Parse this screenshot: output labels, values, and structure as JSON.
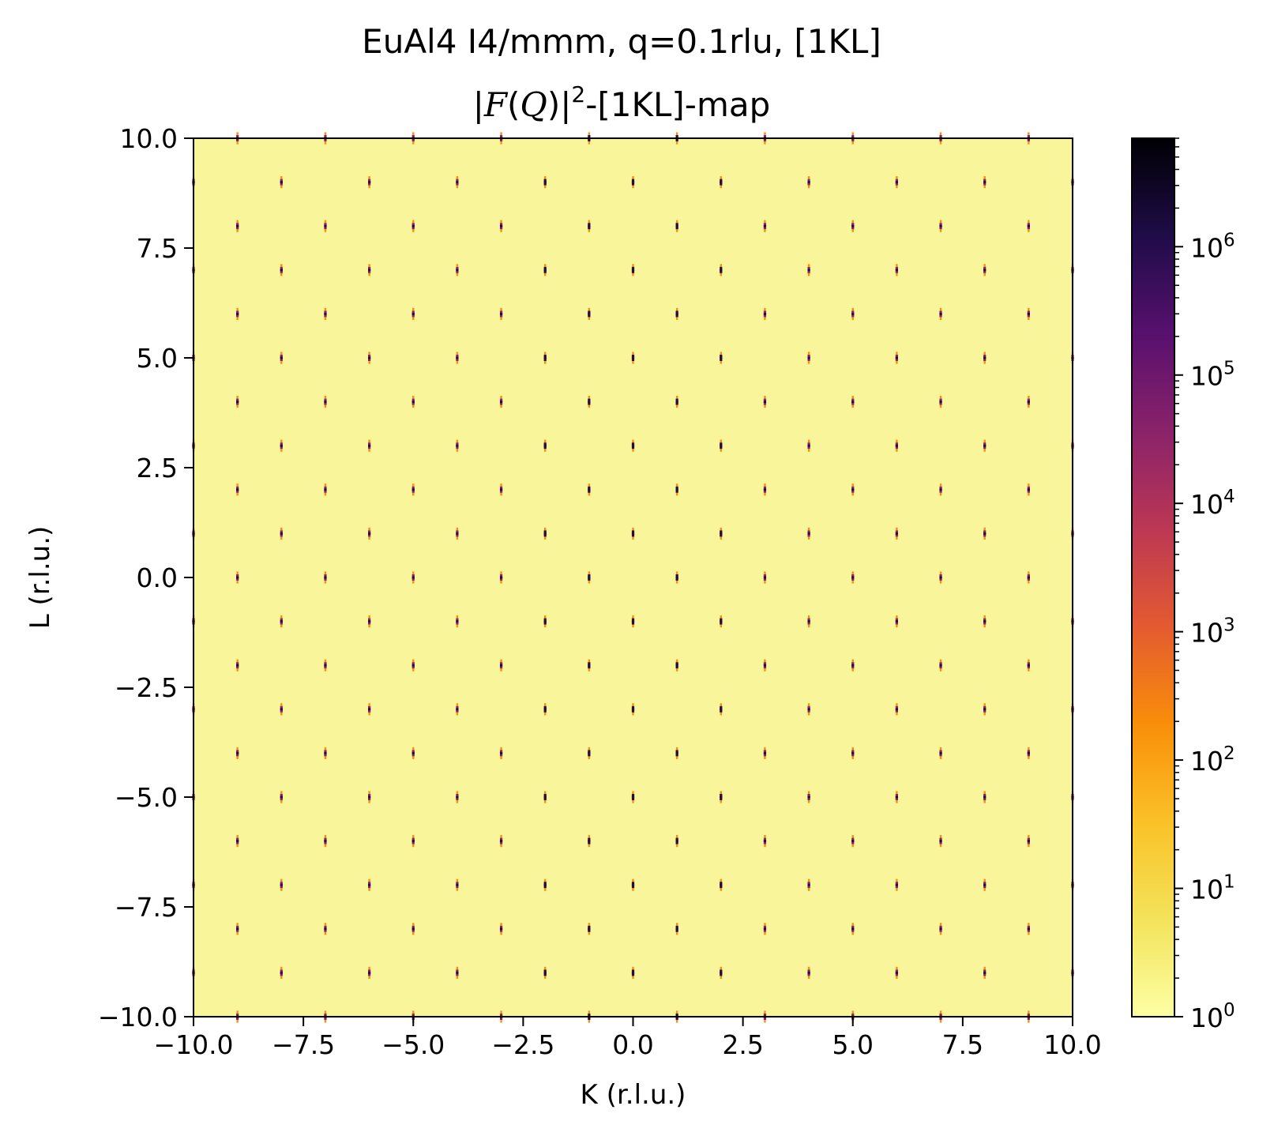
{
  "chart_data": {
    "type": "heatmap",
    "title": "EuAl4 I4/mmm, q=0.1rlu, [1KL]",
    "subtitle": {
      "pre": "|",
      "func": "F",
      "open": "(",
      "arg": "Q",
      "close": ")",
      "post": "|",
      "power": "2",
      "suffix": "-[1KL]-map"
    },
    "xlabel": "K (r.l.u.)",
    "ylabel": "L (r.l.u.)",
    "xlim": [
      -10,
      10
    ],
    "ylim": [
      -10,
      10
    ],
    "xticks": [
      -10,
      -7.5,
      -5,
      -2.5,
      0,
      2.5,
      5,
      7.5,
      10
    ],
    "xtick_labels": [
      "−10.0",
      "−7.5",
      "−5.0",
      "−2.5",
      "0.0",
      "2.5",
      "5.0",
      "7.5",
      "10.0"
    ],
    "yticks": [
      -10,
      -7.5,
      -5,
      -2.5,
      0,
      2.5,
      5,
      7.5,
      10
    ],
    "ytick_labels": [
      "−10.0",
      "−7.5",
      "−5.0",
      "−2.5",
      "0.0",
      "2.5",
      "5.0",
      "7.5",
      "10.0"
    ],
    "grid": false,
    "colormap": "inferno_r",
    "background_color": "#f8f59a",
    "colorbar": {
      "scale": "log",
      "range": [
        1,
        7000000
      ],
      "ticks": [
        1,
        10,
        100,
        1000,
        10000,
        100000,
        1000000
      ],
      "tick_labels": [
        {
          "base": "10",
          "exp": "0"
        },
        {
          "base": "10",
          "exp": "1"
        },
        {
          "base": "10",
          "exp": "2"
        },
        {
          "base": "10",
          "exp": "3"
        },
        {
          "base": "10",
          "exp": "4"
        },
        {
          "base": "10",
          "exp": "5"
        },
        {
          "base": "10",
          "exp": "6"
        }
      ],
      "colors": [
        "#fcffa4",
        "#f3e35a",
        "#fac127",
        "#f98e09",
        "#e45a31",
        "#bc3754",
        "#8a226a",
        "#57106e",
        "#1f0c48",
        "#000004"
      ]
    },
    "peak_rule": "Bragg peaks at integer (K, L) with K+L odd (body-centred with H=1); each peak flanked by satellites at L±0.1",
    "k_range": [
      -10,
      10
    ],
    "l_range": [
      -10,
      10
    ]
  }
}
